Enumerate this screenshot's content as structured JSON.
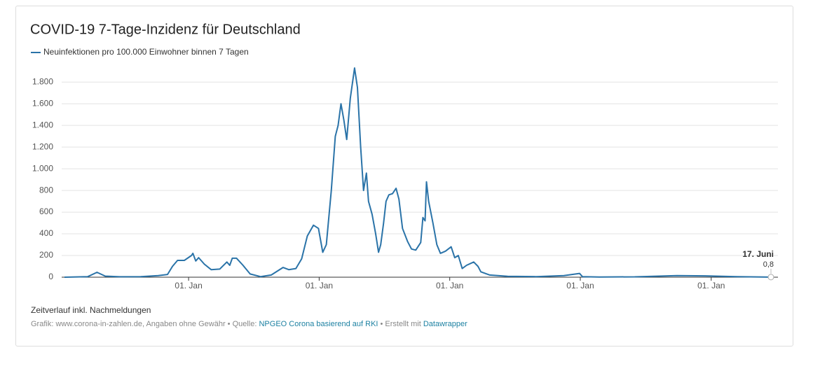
{
  "chart_data": {
    "type": "line",
    "title": "COVID-19 7-Tage-Inzidenz für Deutschland",
    "series_name": "Neuinfektionen pro 100.000 Einwohner binnen 7 Tagen",
    "color": "#2a73a8",
    "x": [
      0,
      65,
      91,
      114,
      154,
      213,
      262,
      288,
      302,
      316,
      335,
      355,
      359,
      367,
      375,
      391,
      410,
      434,
      454,
      462,
      469,
      481,
      499,
      519,
      548,
      578,
      611,
      627,
      647,
      663,
      679,
      696,
      710,
      722,
      732,
      746,
      757,
      765,
      773,
      781,
      789,
      799,
      811,
      819,
      828,
      836,
      844,
      850,
      860,
      870,
      878,
      884,
      892,
      899,
      907,
      917,
      927,
      935,
      945,
      959,
      970,
      982,
      996,
      1002,
      1008,
      1012,
      1018,
      1030,
      1041,
      1051,
      1065,
      1081,
      1091,
      1101,
      1112,
      1124,
      1144,
      1156,
      1164,
      1189,
      1239,
      1318,
      1396,
      1440,
      1448,
      1495,
      1594,
      1712,
      1791,
      1880,
      1975
    ],
    "values": [
      0,
      5,
      45,
      10,
      4,
      5,
      15,
      25,
      100,
      155,
      155,
      200,
      220,
      150,
      180,
      120,
      70,
      75,
      140,
      110,
      175,
      175,
      110,
      30,
      5,
      20,
      90,
      70,
      80,
      170,
      380,
      480,
      450,
      230,
      300,
      800,
      1300,
      1400,
      1600,
      1450,
      1270,
      1650,
      1930,
      1750,
      1200,
      800,
      960,
      700,
      580,
      400,
      230,
      300,
      500,
      700,
      760,
      770,
      820,
      720,
      450,
      330,
      260,
      250,
      320,
      550,
      520,
      880,
      700,
      500,
      300,
      220,
      240,
      280,
      180,
      200,
      80,
      110,
      140,
      100,
      50,
      20,
      8,
      5,
      15,
      35,
      5,
      2,
      3,
      15,
      12,
      5,
      0.8
    ],
    "xlim": [
      0,
      1975
    ],
    "xticks": [
      {
        "value": 347,
        "label": "01. Jan"
      },
      {
        "value": 712,
        "label": "01. Jan"
      },
      {
        "value": 1077,
        "label": "01. Jan"
      },
      {
        "value": 1442,
        "label": "01. Jan"
      },
      {
        "value": 1808,
        "label": "01. Jan"
      }
    ],
    "ylim": [
      0,
      1950
    ],
    "yticks": [
      0,
      200,
      400,
      600,
      800,
      {
        "value": 1000,
        "label": "1.000"
      },
      {
        "value": 1200,
        "label": "1.200"
      },
      {
        "value": 1400,
        "label": "1.400"
      },
      {
        "value": 1600,
        "label": "1.600"
      },
      {
        "value": 1800,
        "label": "1.800"
      }
    ],
    "grid": true,
    "end_annotation": {
      "label": "17. Juni",
      "value_label": "0,8"
    },
    "note": "Zeitverlauf inkl. Nachmeldungen",
    "source": {
      "prefix": "Grafik: www.corona-in-zahlen.de, Angaben ohne Gewähr • Quelle: ",
      "source_link": "NPGEO Corona basierend auf RKI",
      "middle": " • Erstellt mit ",
      "tool_link": "Datawrapper"
    }
  }
}
